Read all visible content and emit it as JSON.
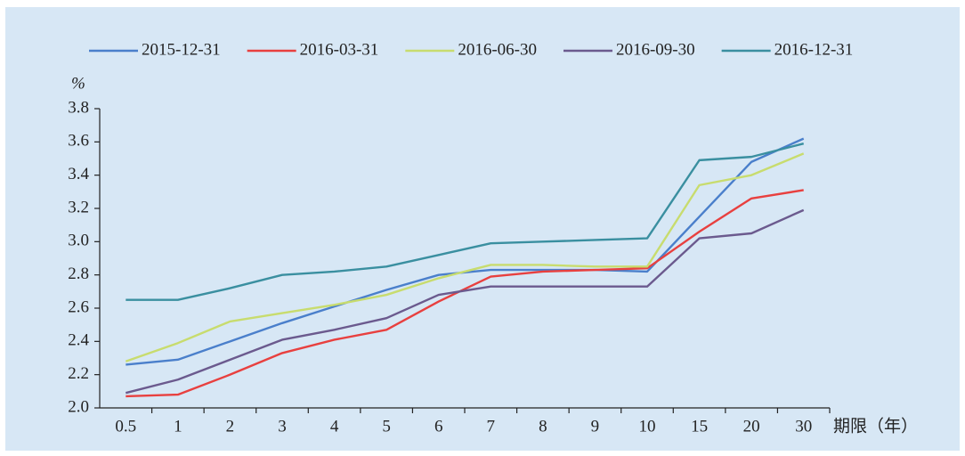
{
  "chart_data": {
    "type": "line",
    "y_unit": "%",
    "x_label": "期限（年）",
    "categories": [
      "0.5",
      "1",
      "2",
      "3",
      "4",
      "5",
      "6",
      "7",
      "8",
      "9",
      "10",
      "15",
      "20",
      "30"
    ],
    "series": [
      {
        "name": "2015-12-31",
        "color": "#4a7fcb",
        "values": [
          2.26,
          2.29,
          2.4,
          2.51,
          2.61,
          2.71,
          2.8,
          2.83,
          2.83,
          2.83,
          2.82,
          3.15,
          3.48,
          3.62
        ]
      },
      {
        "name": "2016-03-31",
        "color": "#e8403f",
        "values": [
          2.07,
          2.08,
          2.2,
          2.33,
          2.41,
          2.47,
          2.64,
          2.79,
          2.82,
          2.83,
          2.84,
          3.06,
          3.26,
          3.31
        ]
      },
      {
        "name": "2016-06-30",
        "color": "#c8dc6e",
        "values": [
          2.28,
          2.39,
          2.52,
          2.57,
          2.62,
          2.68,
          2.78,
          2.86,
          2.86,
          2.85,
          2.85,
          3.34,
          3.4,
          3.53
        ]
      },
      {
        "name": "2016-09-30",
        "color": "#6b5a8e",
        "values": [
          2.09,
          2.17,
          2.29,
          2.41,
          2.47,
          2.54,
          2.68,
          2.73,
          2.73,
          2.73,
          2.73,
          3.02,
          3.05,
          3.19
        ]
      },
      {
        "name": "2016-12-31",
        "color": "#3a8fa0",
        "values": [
          2.65,
          2.65,
          2.72,
          2.8,
          2.82,
          2.85,
          2.92,
          2.99,
          3.0,
          3.01,
          3.02,
          3.49,
          3.51,
          3.59
        ]
      }
    ],
    "ylim": [
      2.0,
      3.8
    ],
    "yticks": [
      {
        "value": 2.0,
        "label": "2.0"
      },
      2.2,
      2.4,
      2.6,
      2.8,
      {
        "value": 3.0,
        "label": "3.0"
      },
      3.2,
      3.4,
      3.6,
      3.8
    ],
    "grid": false,
    "legend": "top"
  }
}
